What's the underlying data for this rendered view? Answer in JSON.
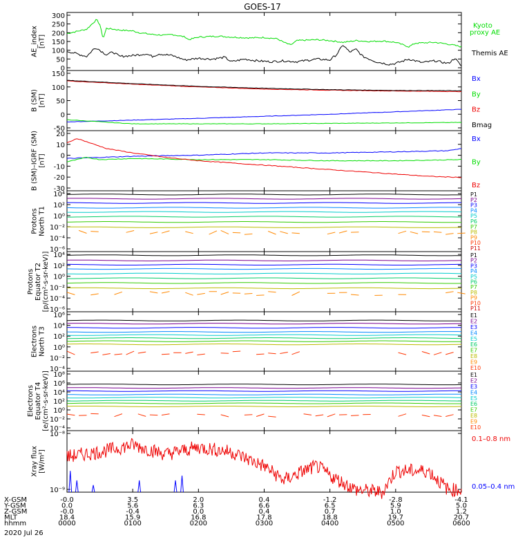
{
  "title": "GOES-17",
  "date": "2020 Jul 26",
  "colors": {
    "black": "#000000",
    "blue": "#0000ff",
    "green": "#00dd00",
    "red": "#ee0000",
    "channels": [
      "#000000",
      "#7a0090",
      "#0000ff",
      "#0088ff",
      "#00cccc",
      "#00cc66",
      "#33cc00",
      "#bbbb00",
      "#ff8800",
      "#ff3300",
      "#cc0000"
    ]
  },
  "panels": [
    {
      "id": "ae",
      "ylabel": [
        "AE_index",
        "[nT]"
      ],
      "yticks": [
        "300",
        "250",
        "200",
        "150",
        "100",
        "50",
        "0"
      ],
      "legend": [
        {
          "label": "Kyoto",
          "color": "#00dd00"
        },
        {
          "label": "proxy AE",
          "color": "#00dd00"
        },
        {
          "label": "Themis AE",
          "color": "#000000"
        }
      ]
    },
    {
      "id": "bsm",
      "ylabel": [
        "B (SM)",
        "[nT]"
      ],
      "yticks": [
        "150",
        "100",
        "50",
        "0",
        "-50"
      ],
      "legend": [
        {
          "label": "Bx",
          "color": "#0000ff"
        },
        {
          "label": "By",
          "color": "#00dd00"
        },
        {
          "label": "Bz",
          "color": "#ee0000"
        },
        {
          "label": "Bmag",
          "color": "#000000"
        }
      ]
    },
    {
      "id": "bigrf",
      "ylabel": [
        "B (SM)–IGRF (SM)",
        "[nT]"
      ],
      "yticks": [
        "20",
        "10",
        "0",
        "-10",
        "-20",
        "-30"
      ],
      "legend": [
        {
          "label": "Bx",
          "color": "#0000ff"
        },
        {
          "label": "By",
          "color": "#00dd00"
        },
        {
          "label": "Bz",
          "color": "#ee0000"
        }
      ]
    },
    {
      "id": "pn",
      "ylabel": [
        "Protons",
        "North T1"
      ],
      "yticks": [
        "10⁴",
        "10²",
        "10⁰",
        "10⁻²",
        "10⁻⁴",
        "10⁻⁶"
      ],
      "legend": [
        "P1",
        "P2",
        "P3",
        "P4",
        "P5",
        "P6",
        "P7",
        "P8",
        "P9",
        "P10",
        "P11"
      ]
    },
    {
      "id": "pe",
      "ylabel": [
        "Protons",
        "Equator T2",
        "[p/(cm²-s-sr-keV)]"
      ],
      "yticks": [
        "10⁴",
        "10²",
        "10⁰",
        "10⁻²",
        "10⁻⁴",
        "10⁻⁶"
      ],
      "legend": [
        "P1",
        "P2",
        "P3",
        "P4",
        "P5",
        "P6",
        "P7",
        "P8",
        "P9",
        "P10",
        "P11"
      ]
    },
    {
      "id": "en",
      "ylabel": [
        "Electrons",
        "North T3"
      ],
      "yticks": [
        "10⁶",
        "10⁴",
        "10²",
        "10⁰",
        "10⁻²",
        "10⁻⁴"
      ],
      "legend": [
        "E1",
        "E2",
        "E3",
        "E4",
        "E5",
        "E6",
        "E7",
        "E8",
        "E9",
        "E10"
      ]
    },
    {
      "id": "ee",
      "ylabel": [
        "Electrons",
        "Equator T4",
        "[e/(cm²-s-sr-keV)]"
      ],
      "yticks": [
        "10⁸",
        "10⁶",
        "10⁴",
        "10²",
        "10⁰",
        "10⁻²",
        "10⁻⁴"
      ],
      "legend": [
        "E1",
        "E2",
        "E3",
        "E4",
        "E5",
        "E6",
        "E7",
        "E8",
        "E9",
        "E10"
      ]
    },
    {
      "id": "xray",
      "ylabel": [
        "Xray flux",
        "[W/m²]"
      ],
      "yticks": [
        "10⁻⁸",
        "10⁻⁹"
      ],
      "legend": [
        {
          "label": "0.1–0.8 nm",
          "color": "#ee0000"
        },
        {
          "label": "0.05–0.4 nm",
          "color": "#0000ff"
        }
      ]
    }
  ],
  "chart_data": {
    "type": "line",
    "title": "GOES-17",
    "x": {
      "label": "hhmm",
      "ticks": [
        "0000",
        "0100",
        "0200",
        "0300",
        "0400",
        "0500",
        "0600"
      ],
      "range_hours": [
        0,
        6
      ]
    },
    "orbit": [
      {
        "label": "X-GSM",
        "values": [
          "-0.0",
          "3.5",
          "2.0",
          "0.4",
          "-1.2",
          "-2.8",
          "-4.1"
        ]
      },
      {
        "label": "Y-GSM",
        "values": [
          "0.0",
          "5.6",
          "6.3",
          "6.6",
          "6.5",
          "5.9",
          "5.0"
        ]
      },
      {
        "label": "Z-GSM",
        "values": [
          "-0.0",
          "-0.4",
          "0.0",
          "0.4",
          "0.7",
          "1.0",
          "1.2"
        ]
      },
      {
        "label": "MLT",
        "values": [
          "18.4",
          "15.9",
          "16.8",
          "17.8",
          "18.8",
          "19.7",
          "20.7"
        ]
      },
      {
        "label": "hhmm",
        "values": [
          "0000",
          "0100",
          "0200",
          "0300",
          "0400",
          "0500",
          "0600"
        ]
      }
    ],
    "ae": {
      "ylim": [
        0,
        300
      ],
      "kyoto_proxy_ae": [
        [
          0,
          200
        ],
        [
          0.3,
          225
        ],
        [
          0.45,
          280
        ],
        [
          0.5,
          250
        ],
        [
          0.55,
          170
        ],
        [
          0.6,
          230
        ],
        [
          0.8,
          220
        ],
        [
          1.0,
          215
        ],
        [
          1.1,
          205
        ],
        [
          1.2,
          200
        ],
        [
          1.3,
          195
        ],
        [
          1.5,
          190
        ],
        [
          1.6,
          195
        ],
        [
          1.8,
          180
        ],
        [
          1.85,
          165
        ],
        [
          2.0,
          180
        ],
        [
          2.3,
          185
        ],
        [
          2.5,
          180
        ],
        [
          2.8,
          175
        ],
        [
          3.0,
          178
        ],
        [
          3.2,
          170
        ],
        [
          3.3,
          150
        ],
        [
          3.4,
          135
        ],
        [
          3.5,
          160
        ],
        [
          3.8,
          165
        ],
        [
          4.0,
          160
        ],
        [
          4.2,
          150
        ],
        [
          4.4,
          160
        ],
        [
          4.6,
          155
        ],
        [
          4.8,
          158
        ],
        [
          5.0,
          150
        ],
        [
          5.2,
          125
        ],
        [
          5.3,
          145
        ],
        [
          5.6,
          150
        ],
        [
          5.8,
          140
        ],
        [
          6.0,
          125
        ]
      ],
      "themis_ae": [
        [
          0,
          100
        ],
        [
          0.3,
          70
        ],
        [
          0.4,
          110
        ],
        [
          0.45,
          120
        ],
        [
          0.5,
          105
        ],
        [
          0.6,
          80
        ],
        [
          0.7,
          95
        ],
        [
          0.8,
          70
        ],
        [
          1.0,
          75
        ],
        [
          1.2,
          85
        ],
        [
          1.3,
          70
        ],
        [
          1.4,
          85
        ],
        [
          1.6,
          75
        ],
        [
          1.8,
          50
        ],
        [
          2.0,
          60
        ],
        [
          2.2,
          55
        ],
        [
          2.4,
          65
        ],
        [
          2.5,
          40
        ],
        [
          2.7,
          55
        ],
        [
          2.9,
          45
        ],
        [
          3.1,
          40
        ],
        [
          3.3,
          45
        ],
        [
          3.5,
          40
        ],
        [
          3.8,
          55
        ],
        [
          4.0,
          50
        ],
        [
          4.1,
          80
        ],
        [
          4.2,
          135
        ],
        [
          4.3,
          95
        ],
        [
          4.4,
          110
        ],
        [
          4.5,
          70
        ],
        [
          4.7,
          40
        ],
        [
          4.9,
          25
        ],
        [
          5.0,
          30
        ],
        [
          5.2,
          55
        ],
        [
          5.4,
          35
        ],
        [
          5.6,
          45
        ],
        [
          5.8,
          30
        ],
        [
          5.9,
          60
        ],
        [
          6.0,
          15
        ]
      ]
    },
    "b_sm": {
      "ylim": [
        -60,
        160
      ],
      "series": [
        {
          "name": "Bx",
          "color": "#0000ff",
          "points": [
            [
              0,
              -28
            ],
            [
              2,
              -15
            ],
            [
              4,
              0
            ],
            [
              6,
              18
            ]
          ]
        },
        {
          "name": "By",
          "color": "#00dd00",
          "points": [
            [
              0,
              -20
            ],
            [
              1,
              -35
            ],
            [
              3,
              -35
            ],
            [
              6,
              -30
            ]
          ]
        },
        {
          "name": "Bz",
          "color": "#ee0000",
          "points": [
            [
              0,
              122
            ],
            [
              1,
              110
            ],
            [
              2,
              100
            ],
            [
              3,
              92
            ],
            [
              4,
              88
            ],
            [
              5,
              85
            ],
            [
              6,
              83
            ]
          ]
        },
        {
          "name": "Bmag",
          "color": "#000000",
          "points": [
            [
              0,
              124
            ],
            [
              1,
              112
            ],
            [
              2,
              102
            ],
            [
              3,
              95
            ],
            [
              4,
              90
            ],
            [
              5,
              87
            ],
            [
              6,
              86
            ]
          ]
        }
      ]
    },
    "b_minus_igrf": {
      "ylim": [
        -30,
        20
      ],
      "series": [
        {
          "name": "Bx",
          "color": "#0000ff",
          "points": [
            [
              0,
              -3
            ],
            [
              1,
              -1
            ],
            [
              2,
              0
            ],
            [
              3,
              2
            ],
            [
              4,
              2
            ],
            [
              5,
              3
            ],
            [
              5.8,
              4
            ],
            [
              6,
              6
            ]
          ]
        },
        {
          "name": "By",
          "color": "#00dd00",
          "points": [
            [
              0,
              -6
            ],
            [
              0.3,
              -2
            ],
            [
              0.5,
              -4
            ],
            [
              1,
              -3
            ],
            [
              2,
              -4
            ],
            [
              3,
              -4
            ],
            [
              4,
              -5
            ],
            [
              5,
              -5
            ],
            [
              6,
              -4
            ]
          ]
        },
        {
          "name": "Bz",
          "color": "#ee0000",
          "points": [
            [
              0,
              11
            ],
            [
              0.15,
              15
            ],
            [
              0.3,
              12
            ],
            [
              0.6,
              6
            ],
            [
              1,
              2
            ],
            [
              1.5,
              -2
            ],
            [
              2,
              -5
            ],
            [
              2.5,
              -7
            ],
            [
              3,
              -9
            ],
            [
              3.5,
              -11
            ],
            [
              4,
              -13
            ],
            [
              4.5,
              -15
            ],
            [
              5,
              -17
            ],
            [
              5.5,
              -19
            ],
            [
              6,
              -20
            ]
          ]
        }
      ]
    },
    "protons_north_t1": {
      "ylim_log10": [
        -7,
        4.5
      ],
      "channels": [
        "P1",
        "P2",
        "P3",
        "P4",
        "P5",
        "P6",
        "P7",
        "P8",
        "P9",
        "P10",
        "P11"
      ],
      "log10_level": [
        3.8,
        3.0,
        2.2,
        1.3,
        0.5,
        -0.4,
        -1.4,
        -2.4,
        -3.4,
        null,
        null
      ]
    },
    "protons_equator_t2": {
      "ylim_log10": [
        -7,
        4.5
      ],
      "channels": [
        "P1",
        "P2",
        "P3",
        "P4",
        "P5",
        "P6",
        "P7",
        "P8",
        "P9",
        "P10",
        "P11"
      ],
      "log10_level": [
        3.8,
        2.8,
        2.0,
        1.2,
        0.3,
        -0.6,
        -1.5,
        -2.5,
        -3.5,
        null,
        null
      ]
    },
    "electrons_north_t3": {
      "ylim_log10": [
        -5,
        6.5
      ],
      "channels": [
        "E1",
        "E2",
        "E3",
        "E4",
        "E5",
        "E6",
        "E7",
        "E8",
        "E9",
        "E10"
      ],
      "log10_level": [
        4.8,
        4.2,
        3.4,
        2.6,
        2.0,
        1.4,
        0.8,
        0.2,
        -1.5,
        null
      ]
    },
    "electrons_equator_t4": {
      "ylim_log10": [
        -5,
        8.5
      ],
      "channels": [
        "E1",
        "E2",
        "E3",
        "E4",
        "E5",
        "E6",
        "E7",
        "E8",
        "E9",
        "E10"
      ],
      "log10_level": [
        5.5,
        4.7,
        4.0,
        3.2,
        2.5,
        1.8,
        1.2,
        0.5,
        -1.5,
        null
      ]
    },
    "xray": {
      "ylim_log10": [
        -9.15,
        -7.85
      ],
      "series": [
        {
          "name": "0.1–0.8 nm",
          "color": "#ee0000",
          "envelope": [
            [
              0,
              -8.4
            ],
            [
              0.5,
              -8.3
            ],
            [
              1.0,
              -8.15
            ],
            [
              1.5,
              -8.35
            ],
            [
              2.0,
              -8.2
            ],
            [
              2.5,
              -8.3
            ],
            [
              3.0,
              -8.6
            ],
            [
              3.3,
              -8.9
            ],
            [
              3.6,
              -8.7
            ],
            [
              3.8,
              -8.6
            ],
            [
              4.0,
              -8.8
            ],
            [
              4.4,
              -9.1
            ],
            [
              4.8,
              -9.15
            ],
            [
              5.0,
              -8.7
            ],
            [
              5.5,
              -8.7
            ],
            [
              5.8,
              -9.1
            ],
            [
              6.0,
              -9.1
            ]
          ]
        },
        {
          "name": "0.05–0.4 nm",
          "color": "#0000ff",
          "spikes": [
            [
              0.05,
              -8.7
            ],
            [
              0.15,
              -8.9
            ],
            [
              0.4,
              -9.0
            ],
            [
              1.1,
              -8.9
            ],
            [
              1.65,
              -8.9
            ],
            [
              1.75,
              -8.8
            ]
          ]
        }
      ]
    }
  }
}
